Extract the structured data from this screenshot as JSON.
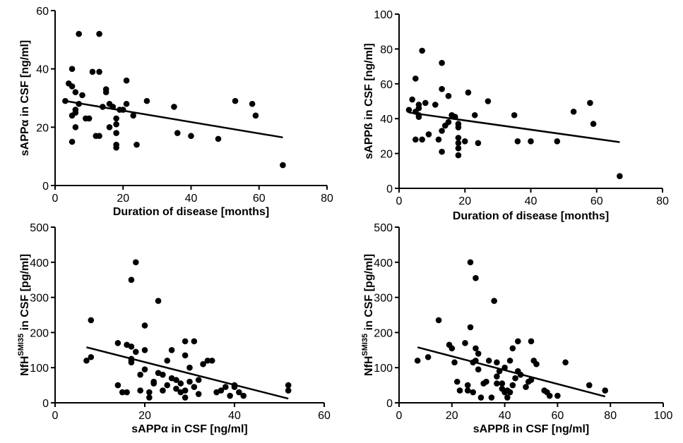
{
  "chart_data": [
    {
      "type": "scatter",
      "xlabel": "Duration of disease [months]",
      "ylabel": "sAPPα in CSF [ng/ml]",
      "xlim": [
        0,
        80
      ],
      "ylim": [
        0,
        60
      ],
      "xticks": [
        "0",
        "20",
        "40",
        "60",
        "80"
      ],
      "yticks": [
        "0",
        "20",
        "40",
        "60"
      ],
      "points": [
        [
          3,
          29
        ],
        [
          4,
          35
        ],
        [
          5,
          34
        ],
        [
          5,
          40
        ],
        [
          5,
          24
        ],
        [
          5,
          15
        ],
        [
          6,
          32
        ],
        [
          6,
          26
        ],
        [
          6,
          20
        ],
        [
          6,
          25
        ],
        [
          7,
          52
        ],
        [
          7,
          28
        ],
        [
          8,
          31
        ],
        [
          9,
          23
        ],
        [
          10,
          23
        ],
        [
          11,
          39
        ],
        [
          12,
          17
        ],
        [
          13,
          39
        ],
        [
          13,
          52
        ],
        [
          13,
          17
        ],
        [
          14,
          27
        ],
        [
          15,
          33
        ],
        [
          15,
          32
        ],
        [
          16,
          20
        ],
        [
          16,
          28
        ],
        [
          17,
          27
        ],
        [
          18,
          23
        ],
        [
          18,
          21
        ],
        [
          18,
          18
        ],
        [
          18,
          14
        ],
        [
          18,
          13
        ],
        [
          19,
          26
        ],
        [
          20,
          26
        ],
        [
          21,
          36
        ],
        [
          21,
          28
        ],
        [
          23,
          24
        ],
        [
          24,
          14
        ],
        [
          27,
          29
        ],
        [
          35,
          27
        ],
        [
          36,
          18
        ],
        [
          40,
          17
        ],
        [
          48,
          16
        ],
        [
          53,
          29
        ],
        [
          58,
          28
        ],
        [
          59,
          24
        ],
        [
          67,
          7
        ]
      ],
      "trendline": [
        [
          3,
          29
        ],
        [
          67,
          16.5
        ]
      ],
      "grid": false,
      "legend": "none"
    },
    {
      "type": "scatter",
      "xlabel": "Duration of disease [months]",
      "ylabel": "sAPPß in CSF [ng/ml]",
      "xlim": [
        0,
        80
      ],
      "ylim": [
        0,
        100
      ],
      "xticks": [
        "0",
        "20",
        "40",
        "60",
        "80"
      ],
      "yticks": [
        "0",
        "20",
        "40",
        "60",
        "80",
        "100"
      ],
      "points": [
        [
          3,
          45
        ],
        [
          4,
          51
        ],
        [
          5,
          63
        ],
        [
          5,
          44
        ],
        [
          5,
          28
        ],
        [
          6,
          48
        ],
        [
          6,
          46
        ],
        [
          6,
          42
        ],
        [
          6,
          41
        ],
        [
          7,
          79
        ],
        [
          7,
          28
        ],
        [
          8,
          49
        ],
        [
          9,
          31
        ],
        [
          11,
          48
        ],
        [
          12,
          28
        ],
        [
          13,
          72
        ],
        [
          13,
          57
        ],
        [
          13,
          21
        ],
        [
          13,
          33
        ],
        [
          14,
          36
        ],
        [
          15,
          38
        ],
        [
          15,
          53
        ],
        [
          16,
          42
        ],
        [
          17,
          41
        ],
        [
          17,
          41
        ],
        [
          18,
          35
        ],
        [
          18,
          29
        ],
        [
          18,
          26
        ],
        [
          18,
          23
        ],
        [
          18,
          19
        ],
        [
          18,
          37
        ],
        [
          20,
          27
        ],
        [
          21,
          55
        ],
        [
          23,
          42
        ],
        [
          24,
          26
        ],
        [
          27,
          50
        ],
        [
          35,
          42
        ],
        [
          36,
          27
        ],
        [
          40,
          27
        ],
        [
          48,
          27
        ],
        [
          53,
          44
        ],
        [
          58,
          49
        ],
        [
          59,
          37
        ],
        [
          67,
          7
        ]
      ],
      "trendline": [
        [
          3,
          43.5
        ],
        [
          67,
          26.5
        ]
      ],
      "grid": false,
      "legend": "none"
    },
    {
      "type": "scatter",
      "xlabel": "sAPPα in CSF [ng/ml]",
      "ylabel_main": "NfH",
      "ylabel_sup": "SMI35",
      "ylabel_rest": " in CSF [pg/ml]",
      "xlim": [
        0,
        60
      ],
      "ylim": [
        0,
        500
      ],
      "xticks": [
        "0",
        "20",
        "40",
        "60"
      ],
      "yticks": [
        "0",
        "100",
        "200",
        "300",
        "400",
        "500"
      ],
      "points": [
        [
          7,
          120
        ],
        [
          8,
          130
        ],
        [
          8,
          235
        ],
        [
          14,
          170
        ],
        [
          14,
          50
        ],
        [
          15,
          30
        ],
        [
          16,
          30
        ],
        [
          16,
          165
        ],
        [
          17,
          120
        ],
        [
          17,
          160
        ],
        [
          17,
          115
        ],
        [
          17,
          125
        ],
        [
          17,
          350
        ],
        [
          18,
          400
        ],
        [
          18,
          145
        ],
        [
          19,
          35
        ],
        [
          19,
          80
        ],
        [
          20,
          220
        ],
        [
          20,
          150
        ],
        [
          20,
          95
        ],
        [
          21,
          30
        ],
        [
          21,
          15
        ],
        [
          22,
          55
        ],
        [
          22,
          60
        ],
        [
          23,
          290
        ],
        [
          23,
          85
        ],
        [
          24,
          80
        ],
        [
          24,
          35
        ],
        [
          25,
          120
        ],
        [
          25,
          50
        ],
        [
          26,
          70
        ],
        [
          26,
          150
        ],
        [
          27,
          65
        ],
        [
          27,
          40
        ],
        [
          28,
          55
        ],
        [
          28,
          30
        ],
        [
          29,
          15
        ],
        [
          29,
          35
        ],
        [
          29,
          175
        ],
        [
          29,
          135
        ],
        [
          30,
          100
        ],
        [
          30,
          60
        ],
        [
          31,
          45
        ],
        [
          31,
          175
        ],
        [
          32,
          65
        ],
        [
          32,
          25
        ],
        [
          33,
          110
        ],
        [
          34,
          120
        ],
        [
          35,
          120
        ],
        [
          36,
          30
        ],
        [
          37,
          35
        ],
        [
          38,
          45
        ],
        [
          39,
          20
        ],
        [
          40,
          45
        ],
        [
          40,
          50
        ],
        [
          41,
          30
        ],
        [
          42,
          20
        ],
        [
          52,
          50
        ],
        [
          52,
          35
        ]
      ],
      "trendline": [
        [
          7,
          158
        ],
        [
          52,
          12
        ]
      ],
      "grid": false,
      "legend": "none"
    },
    {
      "type": "scatter",
      "xlabel": "sAPPß in CSF [ng/ml]",
      "ylabel_main": "NfH",
      "ylabel_sup": "SMI35",
      "ylabel_rest": " in CSF [pg/ml]",
      "xlim": [
        0,
        100
      ],
      "ylim": [
        0,
        500
      ],
      "xticks": [
        "0",
        "20",
        "40",
        "60",
        "80",
        "100"
      ],
      "yticks": [
        "0",
        "100",
        "200",
        "300",
        "400",
        "500"
      ],
      "points": [
        [
          7,
          120
        ],
        [
          11,
          130
        ],
        [
          15,
          235
        ],
        [
          19,
          165
        ],
        [
          20,
          155
        ],
        [
          21,
          115
        ],
        [
          22,
          60
        ],
        [
          23,
          35
        ],
        [
          25,
          170
        ],
        [
          26,
          35
        ],
        [
          26,
          50
        ],
        [
          27,
          215
        ],
        [
          27,
          400
        ],
        [
          28,
          115
        ],
        [
          28,
          30
        ],
        [
          29,
          355
        ],
        [
          29,
          120
        ],
        [
          29,
          155
        ],
        [
          30,
          140
        ],
        [
          30,
          95
        ],
        [
          31,
          15
        ],
        [
          32,
          55
        ],
        [
          33,
          60
        ],
        [
          34,
          120
        ],
        [
          35,
          15
        ],
        [
          36,
          290
        ],
        [
          37,
          115
        ],
        [
          37,
          55
        ],
        [
          37,
          75
        ],
        [
          38,
          90
        ],
        [
          39,
          55
        ],
        [
          39,
          40
        ],
        [
          40,
          30
        ],
        [
          40,
          100
        ],
        [
          41,
          15
        ],
        [
          41,
          35
        ],
        [
          42,
          30
        ],
        [
          42,
          120
        ],
        [
          43,
          155
        ],
        [
          43,
          50
        ],
        [
          44,
          70
        ],
        [
          45,
          90
        ],
        [
          45,
          175
        ],
        [
          46,
          80
        ],
        [
          48,
          45
        ],
        [
          49,
          60
        ],
        [
          50,
          175
        ],
        [
          50,
          65
        ],
        [
          51,
          120
        ],
        [
          52,
          110
        ],
        [
          55,
          35
        ],
        [
          56,
          30
        ],
        [
          57,
          20
        ],
        [
          60,
          20
        ],
        [
          63,
          115
        ],
        [
          72,
          50
        ],
        [
          78,
          35
        ]
      ],
      "trendline": [
        [
          7,
          158
        ],
        [
          78,
          18
        ]
      ],
      "grid": false,
      "legend": "none"
    }
  ]
}
